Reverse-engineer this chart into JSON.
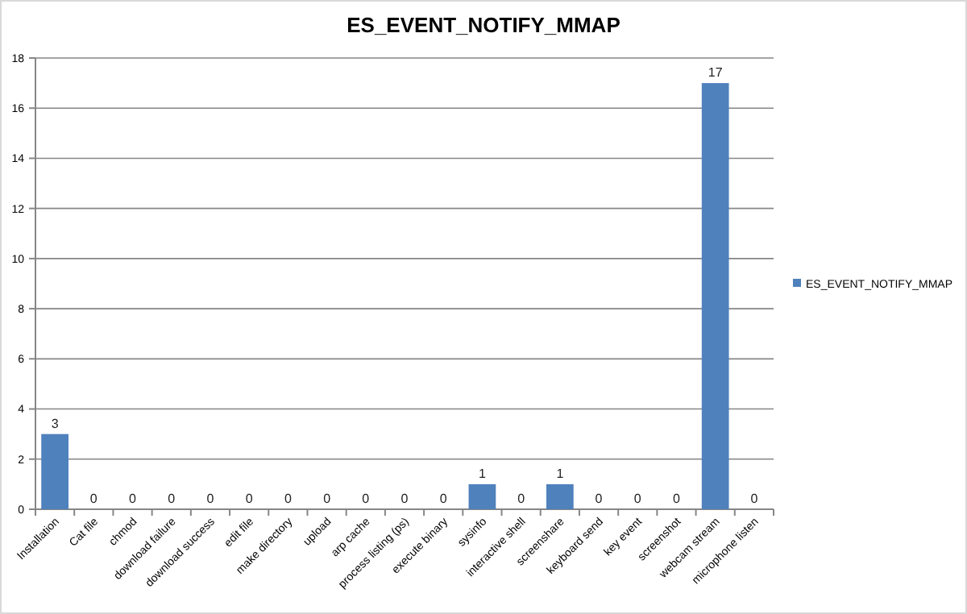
{
  "chart_data": {
    "type": "bar",
    "title": "ES_EVENT_NOTIFY_MMAP",
    "categories": [
      "Installation",
      "Cat file",
      "chmod",
      "download failure",
      "download success",
      "edit file",
      "make directory",
      "upload",
      "arp cache",
      "process listing (ps)",
      "execute binary",
      "sysinfo",
      "interactive shell",
      "screenshare",
      "keyboard send",
      "key event",
      "screenshot",
      "webcam stream",
      "microphone listen"
    ],
    "series": [
      {
        "name": "ES_EVENT_NOTIFY_MMAP",
        "color": "#4f81bd",
        "values": [
          3,
          0,
          0,
          0,
          0,
          0,
          0,
          0,
          0,
          0,
          0,
          1,
          0,
          1,
          0,
          0,
          0,
          17,
          0
        ]
      }
    ],
    "ylim": [
      0,
      18
    ],
    "yticks": [
      0,
      2,
      4,
      6,
      8,
      10,
      12,
      14,
      16,
      18
    ],
    "grid": "y",
    "legend": "right",
    "data_labels": true
  }
}
